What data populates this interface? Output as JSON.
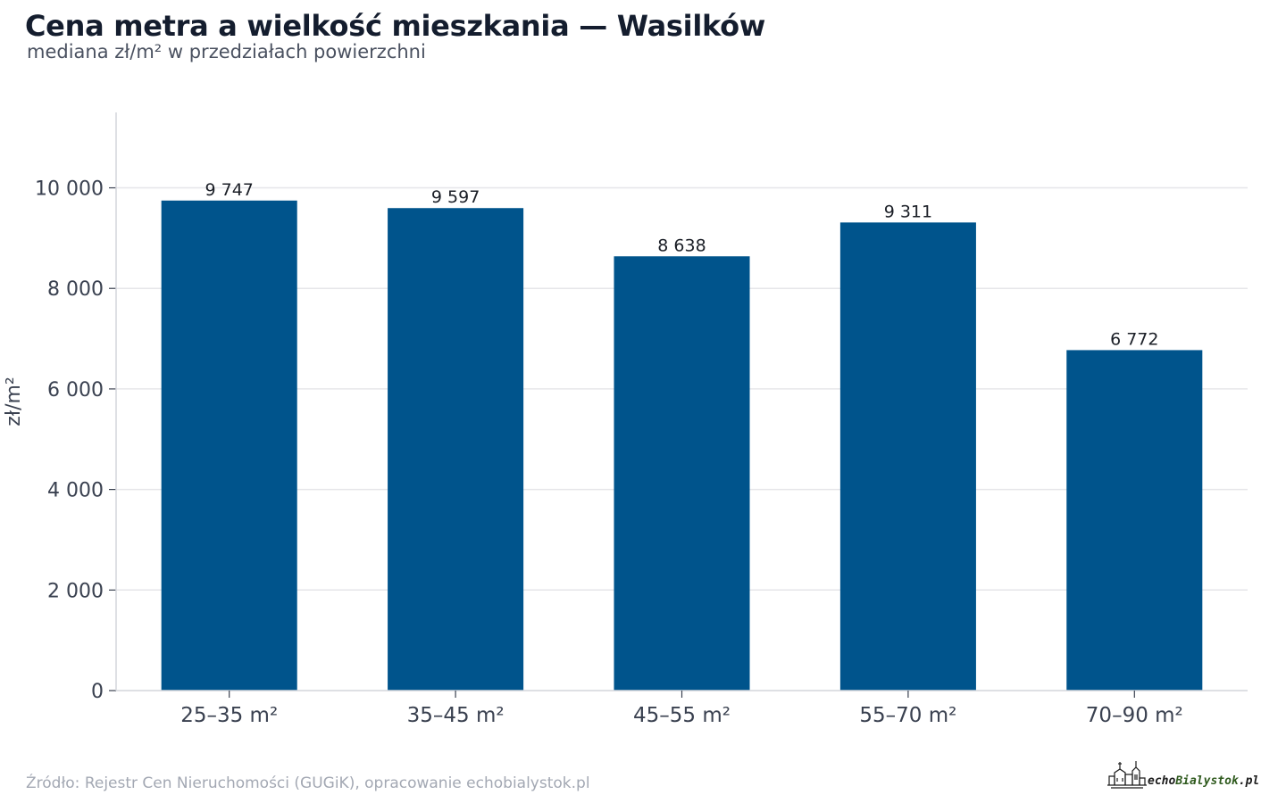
{
  "header": {
    "title": "Cena metra a wielkość mieszkania — Wasilków",
    "subtitle": "mediana zł/m² w przedziałach powierzchni"
  },
  "footer": {
    "source": "Źródło: Rejestr Cen Nieruchomości (GUGiK), opracowanie echobialystok.pl",
    "logo_text_echo": "echo",
    "logo_text_city": "Bialystok",
    "logo_text_tld": ".pl"
  },
  "colors": {
    "bar": "#00548c",
    "grid": "#e6e6e9",
    "axis": "#d4d6dc",
    "tick_text": "#3a4150",
    "label_text": "#1b1f27",
    "logo_green": "#2f5a1e",
    "logo_dark": "#1b1b1b"
  },
  "chart_data": {
    "type": "bar",
    "categories": [
      "25–35 m²",
      "35–45 m²",
      "45–55 m²",
      "55–70 m²",
      "70–90 m²"
    ],
    "values": [
      9747,
      9597,
      8638,
      9311,
      6772
    ],
    "value_labels": [
      "9 747",
      "9 597",
      "8 638",
      "9 311",
      "6 772"
    ],
    "ylabel": "zł/m²",
    "xlabel": "",
    "ylim": [
      0,
      11500
    ],
    "yticks": [
      0,
      2000,
      4000,
      6000,
      8000,
      10000
    ],
    "ytick_labels": [
      "0",
      "2 000",
      "4 000",
      "6 000",
      "8 000",
      "10 000"
    ],
    "grid": true,
    "legend": "none"
  }
}
